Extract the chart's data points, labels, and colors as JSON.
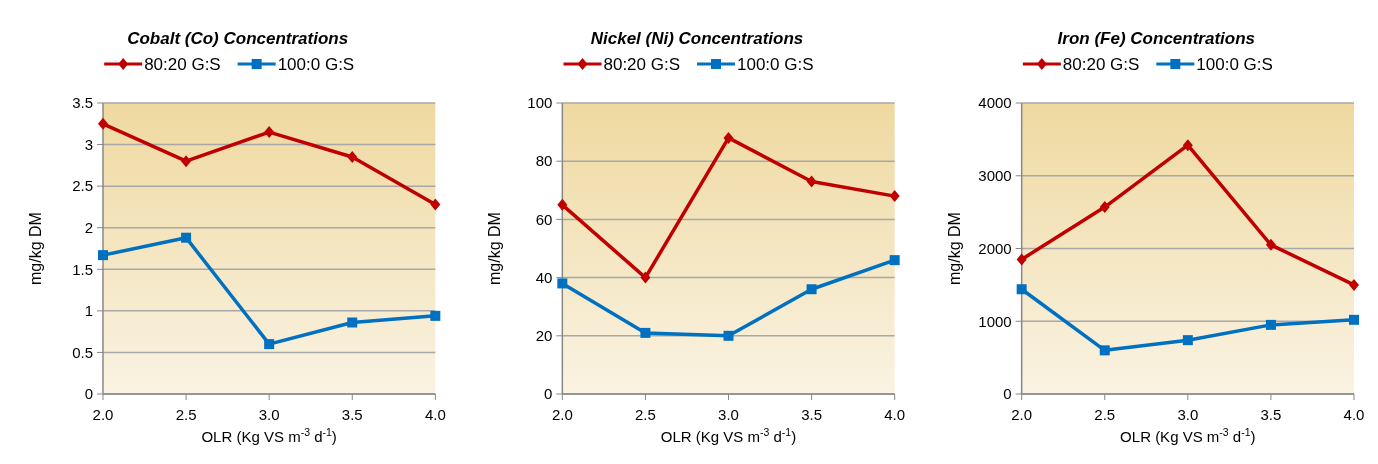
{
  "chart_data": [
    {
      "type": "line",
      "title": "Cobalt (Co) Concentrations",
      "xlabel": "OLR (Kg VS m$^{-3}$ d$^{-1}$)",
      "ylabel": "mg/kg DM",
      "categories": [
        "2.0",
        "2.5",
        "3.0",
        "3.5",
        "4.0"
      ],
      "ylim": [
        0,
        3.5
      ],
      "yticks": [
        0,
        {
          "value": 0.5,
          "label": "0.5"
        },
        1,
        {
          "value": 1.5,
          "label": "1.5"
        },
        2,
        {
          "value": 2.5,
          "label": "2.5"
        },
        3,
        {
          "value": 3.5,
          "label": "3.5"
        }
      ],
      "grid": "y",
      "legend": "top",
      "series": [
        {
          "name": "80:20 G:S",
          "color": "#c00000",
          "marker": "diamond",
          "values": [
            3.25,
            2.8,
            3.15,
            2.85,
            2.28
          ]
        },
        {
          "name": "100:0 G:S",
          "color": "#0070c0",
          "marker": "square",
          "values": [
            1.67,
            1.88,
            0.6,
            0.86,
            0.94
          ]
        }
      ]
    },
    {
      "type": "line",
      "title": "Nickel (Ni) Concentrations",
      "xlabel": "OLR (Kg VS m$^{-3}$ d$^{-1}$)",
      "ylabel": "mg/kg DM",
      "categories": [
        "2.0",
        "2.5",
        "3.0",
        "3.5",
        "4.0"
      ],
      "ylim": [
        0,
        100
      ],
      "yticks": [
        0,
        20,
        40,
        60,
        80,
        100
      ],
      "grid": "y",
      "legend": "top",
      "series": [
        {
          "name": "80:20 G:S",
          "color": "#c00000",
          "marker": "diamond",
          "values": [
            65,
            40,
            88,
            73,
            68
          ]
        },
        {
          "name": "100:0 G:S",
          "color": "#0070c0",
          "marker": "square",
          "values": [
            38,
            21,
            20,
            36,
            46
          ]
        }
      ]
    },
    {
      "type": "line",
      "title": "Iron (Fe) Concentrations",
      "xlabel": "OLR (Kg VS m$^{-3}$ d$^{-1}$)",
      "ylabel": "mg/kg DM",
      "categories": [
        "2.0",
        "2.5",
        "3.0",
        "3.5",
        "4.0"
      ],
      "ylim": [
        0,
        4000
      ],
      "yticks": [
        0,
        1000,
        2000,
        3000,
        4000
      ],
      "grid": "y",
      "legend": "top",
      "series": [
        {
          "name": "80:20 G:S",
          "color": "#c00000",
          "marker": "diamond",
          "values": [
            1850,
            2570,
            3420,
            2050,
            1500
          ]
        },
        {
          "name": "100:0 G:S",
          "color": "#0070c0",
          "marker": "square",
          "values": [
            1440,
            600,
            740,
            950,
            1020
          ]
        }
      ]
    }
  ]
}
